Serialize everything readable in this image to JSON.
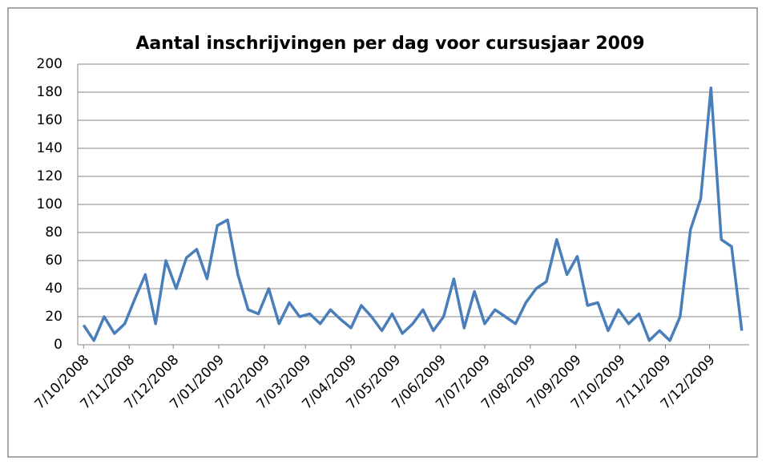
{
  "chart_data": {
    "type": "line",
    "title": "Aantal inschrijvingen per dag voor cursusjaar 2009",
    "x": [
      "7/10/2008",
      "14/10/2008",
      "21/10/2008",
      "28/10/2008",
      "4/11/2008",
      "11/11/2008",
      "18/11/2008",
      "25/11/2008",
      "2/12/2008",
      "9/12/2008",
      "16/12/2008",
      "23/12/2008",
      "30/12/2008",
      "6/01/2009",
      "13/01/2009",
      "20/01/2009",
      "27/01/2009",
      "3/02/2009",
      "10/02/2009",
      "17/02/2009",
      "24/02/2009",
      "3/03/2009",
      "10/03/2009",
      "17/03/2009",
      "24/03/2009",
      "31/03/2009",
      "7/04/2009",
      "14/04/2009",
      "21/04/2009",
      "28/04/2009",
      "5/05/2009",
      "12/05/2009",
      "19/05/2009",
      "26/05/2009",
      "2/06/2009",
      "9/06/2009",
      "16/06/2009",
      "23/06/2009",
      "30/06/2009",
      "7/07/2009",
      "14/07/2009",
      "21/07/2009",
      "28/07/2009",
      "4/08/2009",
      "11/08/2009",
      "18/08/2009",
      "25/08/2009",
      "1/09/2009",
      "8/09/2009",
      "15/09/2009",
      "22/09/2009",
      "29/09/2009",
      "6/10/2009",
      "13/10/2009",
      "20/10/2009",
      "27/10/2009",
      "3/11/2009",
      "10/11/2009",
      "17/11/2009",
      "24/11/2009",
      "1/12/2009",
      "8/12/2009",
      "15/12/2009",
      "22/12/2009",
      "29/12/2009"
    ],
    "series": [
      {
        "name": "Aantal inschrijvingen",
        "color": "#4a7ebb",
        "values": [
          14,
          3,
          20,
          8,
          15,
          33,
          50,
          15,
          60,
          40,
          62,
          68,
          47,
          85,
          89,
          50,
          25,
          22,
          40,
          15,
          30,
          20,
          22,
          15,
          25,
          18,
          12,
          28,
          20,
          10,
          22,
          8,
          15,
          25,
          10,
          20,
          47,
          12,
          38,
          15,
          25,
          20,
          15,
          30,
          40,
          45,
          75,
          50,
          63,
          28,
          30,
          10,
          25,
          15,
          22,
          3,
          10,
          3,
          20,
          82,
          104,
          183,
          75,
          70,
          10
        ]
      }
    ],
    "xlim": [
      "3/10/2008",
      "3/01/2010"
    ],
    "xticks": [
      "7/10/2008",
      "7/11/2008",
      "7/12/2008",
      "7/01/2009",
      "7/02/2009",
      "7/03/2009",
      "7/04/2009",
      "7/05/2009",
      "7/06/2009",
      "7/07/2009",
      "7/08/2009",
      "7/09/2009",
      "7/10/2009",
      "7/11/2009",
      "7/12/2009"
    ],
    "ylim": [
      0,
      200
    ],
    "yticks": [
      0,
      20,
      40,
      60,
      80,
      100,
      120,
      140,
      160,
      180,
      200
    ],
    "grid": true
  }
}
